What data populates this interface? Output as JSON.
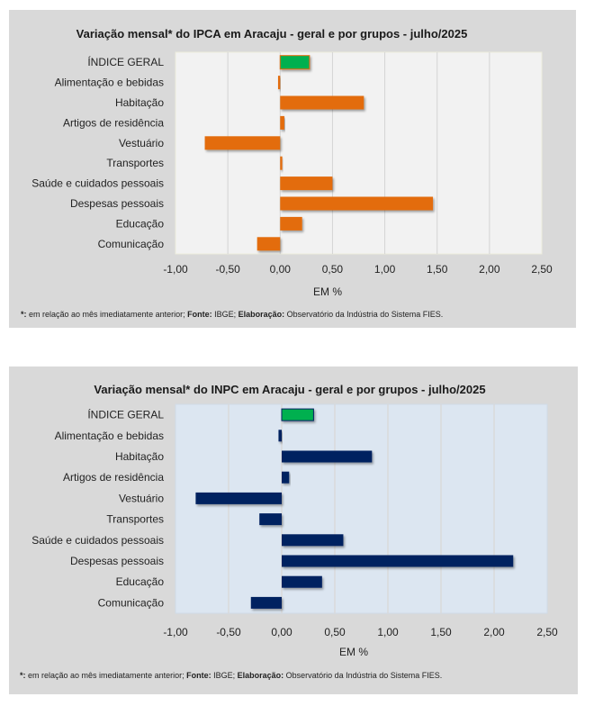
{
  "chart_data": [
    {
      "type": "bar",
      "orientation": "horizontal",
      "title": "Variação  mensal*  do IPCA em Aracaju  - geral e por grupos  - julho/2025",
      "xlabel": "EM %",
      "ylabel": "",
      "xlim": [
        -1.0,
        2.5
      ],
      "x_ticks": [
        "-1,00",
        "-0,50",
        "0,00",
        "0,50",
        "1,00",
        "1,50",
        "2,00",
        "2,50"
      ],
      "x_tick_values": [
        -1.0,
        -0.5,
        0.0,
        0.5,
        1.0,
        1.5,
        2.0,
        2.5
      ],
      "grid": "vertical",
      "categories": [
        "ÍNDICE GERAL",
        "Alimentação e bebidas",
        "Habitação",
        "Artigos de residência",
        "Vestuário",
        "Transportes",
        "Saúde e cuidados pessoais",
        "Despesas pessoais",
        "Educação",
        "Comunicação"
      ],
      "values": [
        0.28,
        -0.02,
        0.8,
        0.04,
        -0.72,
        0.02,
        0.5,
        1.46,
        0.21,
        -0.22
      ],
      "colors": {
        "highlight": "#00b050",
        "bars": "#e36c09",
        "plot_bg": "#f2f2f2",
        "panel_bg": "#d9d9d9",
        "grid": "#d4d4d4"
      },
      "footnote": {
        "star": "*:",
        "text1": " em relação ao mês imediatamente  anterior; ",
        "fonte_label": "Fonte:",
        "fonte": " IBGE; ",
        "elab_label": "Elaboração:",
        "elab": " Observatório da Indústria do Sistema FIES."
      }
    },
    {
      "type": "bar",
      "orientation": "horizontal",
      "title": "Variação  mensal*  do INPC em Aracaju  - geral e por grupos  - julho/2025",
      "xlabel": "EM %",
      "ylabel": "",
      "xlim": [
        -1.0,
        2.5
      ],
      "x_ticks": [
        "-1,00",
        "-0,50",
        "0,00",
        "0,50",
        "1,00",
        "1,50",
        "2,00",
        "2,50"
      ],
      "x_tick_values": [
        -1.0,
        -0.5,
        0.0,
        0.5,
        1.0,
        1.5,
        2.0,
        2.5
      ],
      "grid": "vertical",
      "categories": [
        "ÍNDICE GERAL",
        "Alimentação e bebidas",
        "Habitação",
        "Artigos de residência",
        "Vestuário",
        "Transportes",
        "Saúde e cuidados pessoais",
        "Despesas pessoais",
        "Educação",
        "Comunicação"
      ],
      "values": [
        0.3,
        -0.03,
        0.85,
        0.07,
        -0.81,
        -0.21,
        0.58,
        2.18,
        0.38,
        -0.29
      ],
      "colors": {
        "highlight": "#00b050",
        "bars": "#002060",
        "plot_bg": "#dce6f1",
        "panel_bg": "#d9d9d9",
        "grid": "#d9d4d0"
      },
      "footnote": {
        "star": "*:",
        "text1": " em relação ao mês imediatamente  anterior; ",
        "fonte_label": "Fonte:",
        "fonte": " IBGE; ",
        "elab_label": "Elaboração:",
        "elab": " Observatório da Indústria do Sistema FIES."
      }
    }
  ]
}
